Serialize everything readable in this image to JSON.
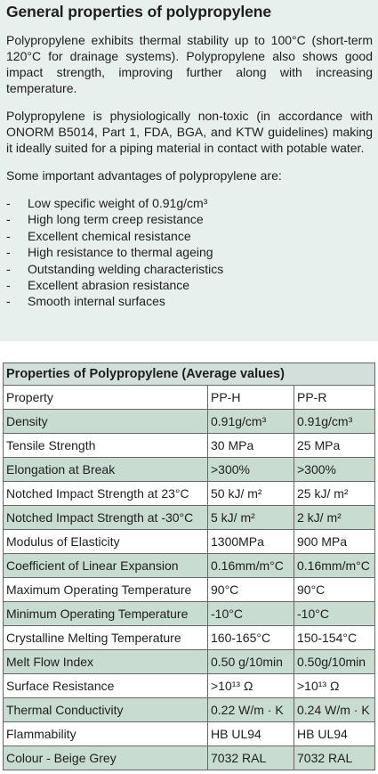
{
  "heading": "General properties of polypropylene",
  "paragraphs": [
    "Polypropylene exhibits thermal stability up to 100°C (short-term 120°C for drainage systems). Polypropylene also shows good impact strength, improving further along with increasing temperature.",
    "Polypropylene is physiologically non-toxic (in accordance with ONORM B5014, Part 1, FDA, BGA, and KTW guidelines) making it ideally suited for a piping material in contact with potable water.",
    "Some important advantages of polypropylene are:"
  ],
  "advantages": [
    "Low specific weight of 0.91g/cm³",
    "High long term creep resistance",
    "Excellent chemical resistance",
    "High resistance to thermal ageing",
    "Outstanding welding characteristics",
    "Excellent abrasion resistance",
    "Smooth internal surfaces"
  ],
  "table": {
    "caption": "Properties of Polypropylene (Average values)",
    "header": [
      "Property",
      "PP-H",
      "PP-R"
    ],
    "rows": [
      [
        "Density",
        "0.91g/cm³",
        "0.91g/cm³"
      ],
      [
        "Tensile Strength",
        "30 MPa",
        "25 MPa"
      ],
      [
        "Elongation at Break",
        ">300%",
        ">300%"
      ],
      [
        "Notched Impact Strength at 23°C",
        "50 kJ/ m²",
        "25 kJ/ m²"
      ],
      [
        "Notched Impact Strength at -30°C",
        "5 kJ/ m²",
        "2 kJ/ m²"
      ],
      [
        "Modulus of Elasticity",
        "1300MPa",
        "900 MPa"
      ],
      [
        "Coefficient of Linear Expansion",
        "0.16mm/m°C",
        "0.16mm/m°C"
      ],
      [
        "Maximum Operating Temperature",
        "90°C",
        "90°C"
      ],
      [
        "Minimum Operating Temperature",
        "-10°C",
        "-10°C"
      ],
      [
        "Crystalline Melting Temperature",
        "160-165°C",
        "150-154°C"
      ],
      [
        "Melt Flow Index",
        "0.50 g/10min",
        "0.50g/10min"
      ],
      [
        "Surface Resistance",
        ">10¹³ Ω",
        ">10¹³ Ω"
      ],
      [
        "Thermal Conductivity",
        "0.22 W/m · K",
        "0.24 W/m · K"
      ],
      [
        "Flammability",
        "HB UL94",
        "HB UL94"
      ],
      [
        "Colour - Beige Grey",
        "7032 RAL",
        "7032 RAL"
      ]
    ]
  },
  "colors": {
    "panel_background": "#e7f0ec",
    "row_shade": "#c8dcd2",
    "caption_background": "#d3dfda"
  }
}
